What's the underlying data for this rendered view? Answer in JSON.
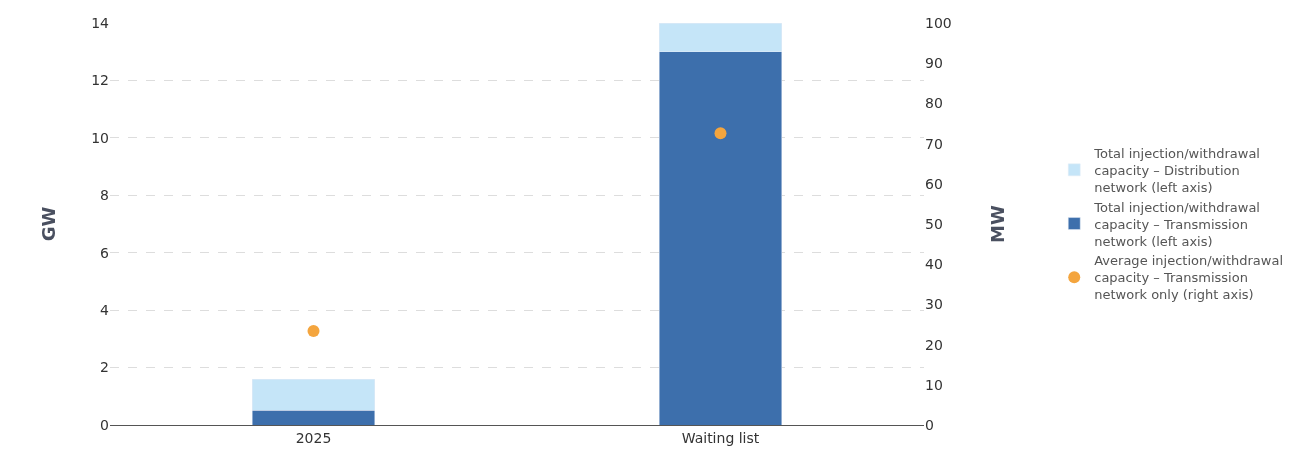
{
  "chart_data": {
    "type": "bar",
    "stacked": true,
    "categories": [
      "2025",
      "Waiting list"
    ],
    "ylabel": "GW",
    "y2label": "MW",
    "ylim": [
      0,
      14
    ],
    "yticks": [
      0,
      2,
      4,
      6,
      8,
      10,
      12,
      14
    ],
    "y2lim": [
      0,
      100
    ],
    "y2ticks": [
      0,
      10,
      20,
      30,
      40,
      50,
      60,
      70,
      80,
      90,
      100
    ],
    "grid": "y",
    "legend": "right",
    "series": [
      {
        "name": "Total injection/withdrawal capacity – Transmission network (left axis)",
        "color": "#3d6fac",
        "values": [
          0.52,
          13.0
        ]
      },
      {
        "name": "Total injection/withdrawal capacity – Distribution network (left axis)",
        "color": "#c5e5f8",
        "values": [
          1.08,
          1.0
        ]
      },
      {
        "name": "Average injection/withdrawal capacity – Transmission network only (right axis)",
        "color": "#f4a53e",
        "type": "scatter",
        "axis": "y2",
        "marker": "circle",
        "values": [
          23.4,
          72.6
        ]
      }
    ]
  }
}
